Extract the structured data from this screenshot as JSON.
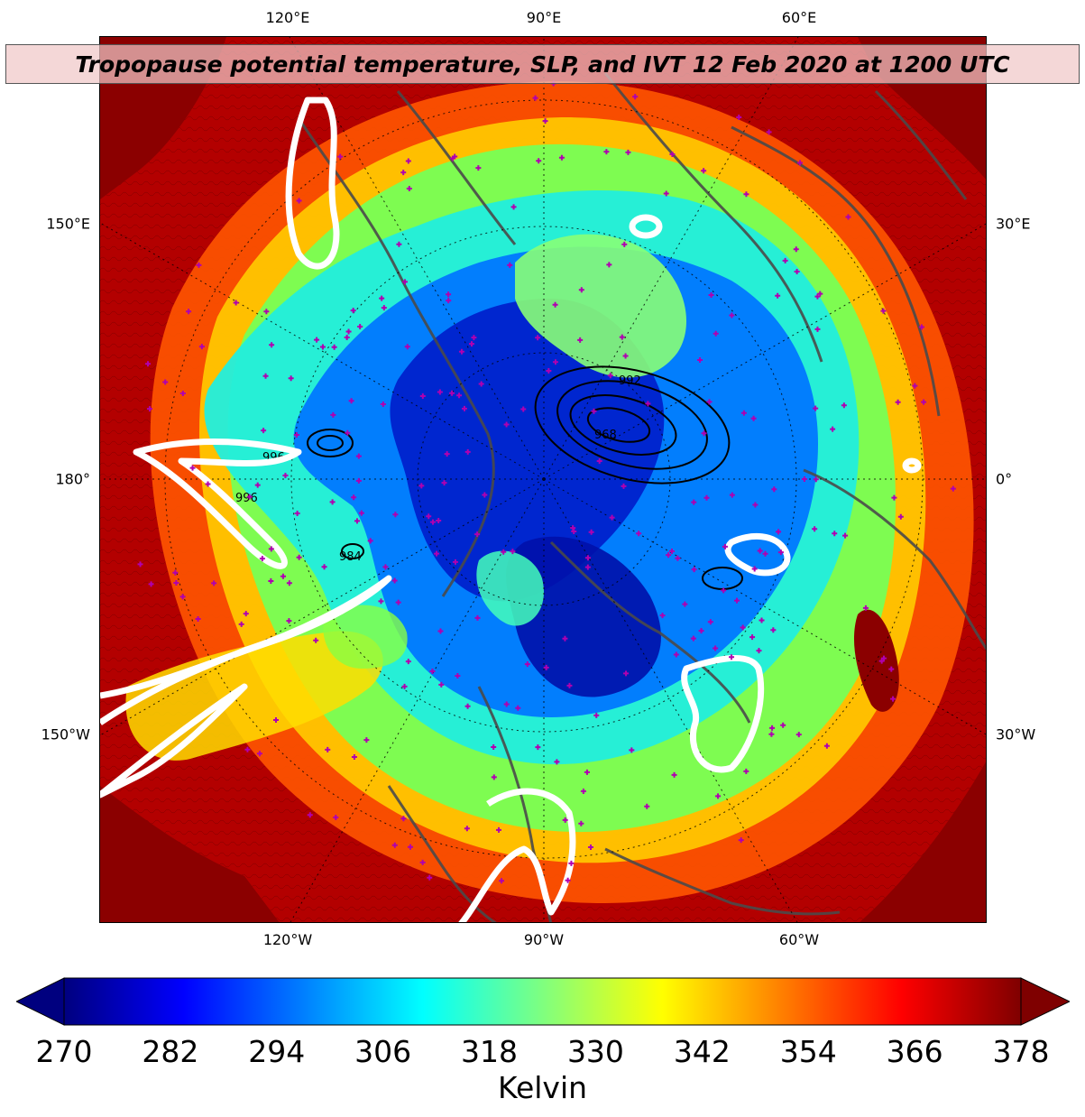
{
  "title": "Tropopause potential temperature, SLP, and IVT 12 Feb 2020 at 1200 UTC",
  "map": {
    "variable": "Tropopause potential temperature",
    "overlays": [
      "SLP contours (black)",
      "IVT contours (white)",
      "station markers (magenta +)",
      "coastlines (grey)"
    ],
    "projection": "north-polar-stereographic",
    "colormap": "jet"
  },
  "lon_labels": {
    "top": [
      "120°E",
      "90°E",
      "60°E"
    ],
    "bottom": [
      "120°W",
      "90°W",
      "60°W"
    ],
    "left": [
      "150°E",
      "180°",
      "150°W"
    ],
    "right": [
      "30°E",
      "0°",
      "30°W"
    ]
  },
  "slp_labels": [
    "992",
    "968",
    "996",
    "996",
    "984"
  ],
  "colorbar": {
    "min": 270,
    "max": 378,
    "ticks": [
      "270",
      "282",
      "294",
      "306",
      "318",
      "330",
      "342",
      "354",
      "366",
      "378"
    ],
    "label": "Kelvin",
    "colors": [
      "#00007f",
      "#0000ff",
      "#007fff",
      "#00ffff",
      "#7fff7f",
      "#ffff00",
      "#ff7f00",
      "#ff0000",
      "#7f0000"
    ],
    "extend": "both"
  },
  "colors": {
    "marker": "#b000b0",
    "coastline": "#4a4a4a",
    "ivt": "#ffffff",
    "background_warm": "#8b0000"
  }
}
